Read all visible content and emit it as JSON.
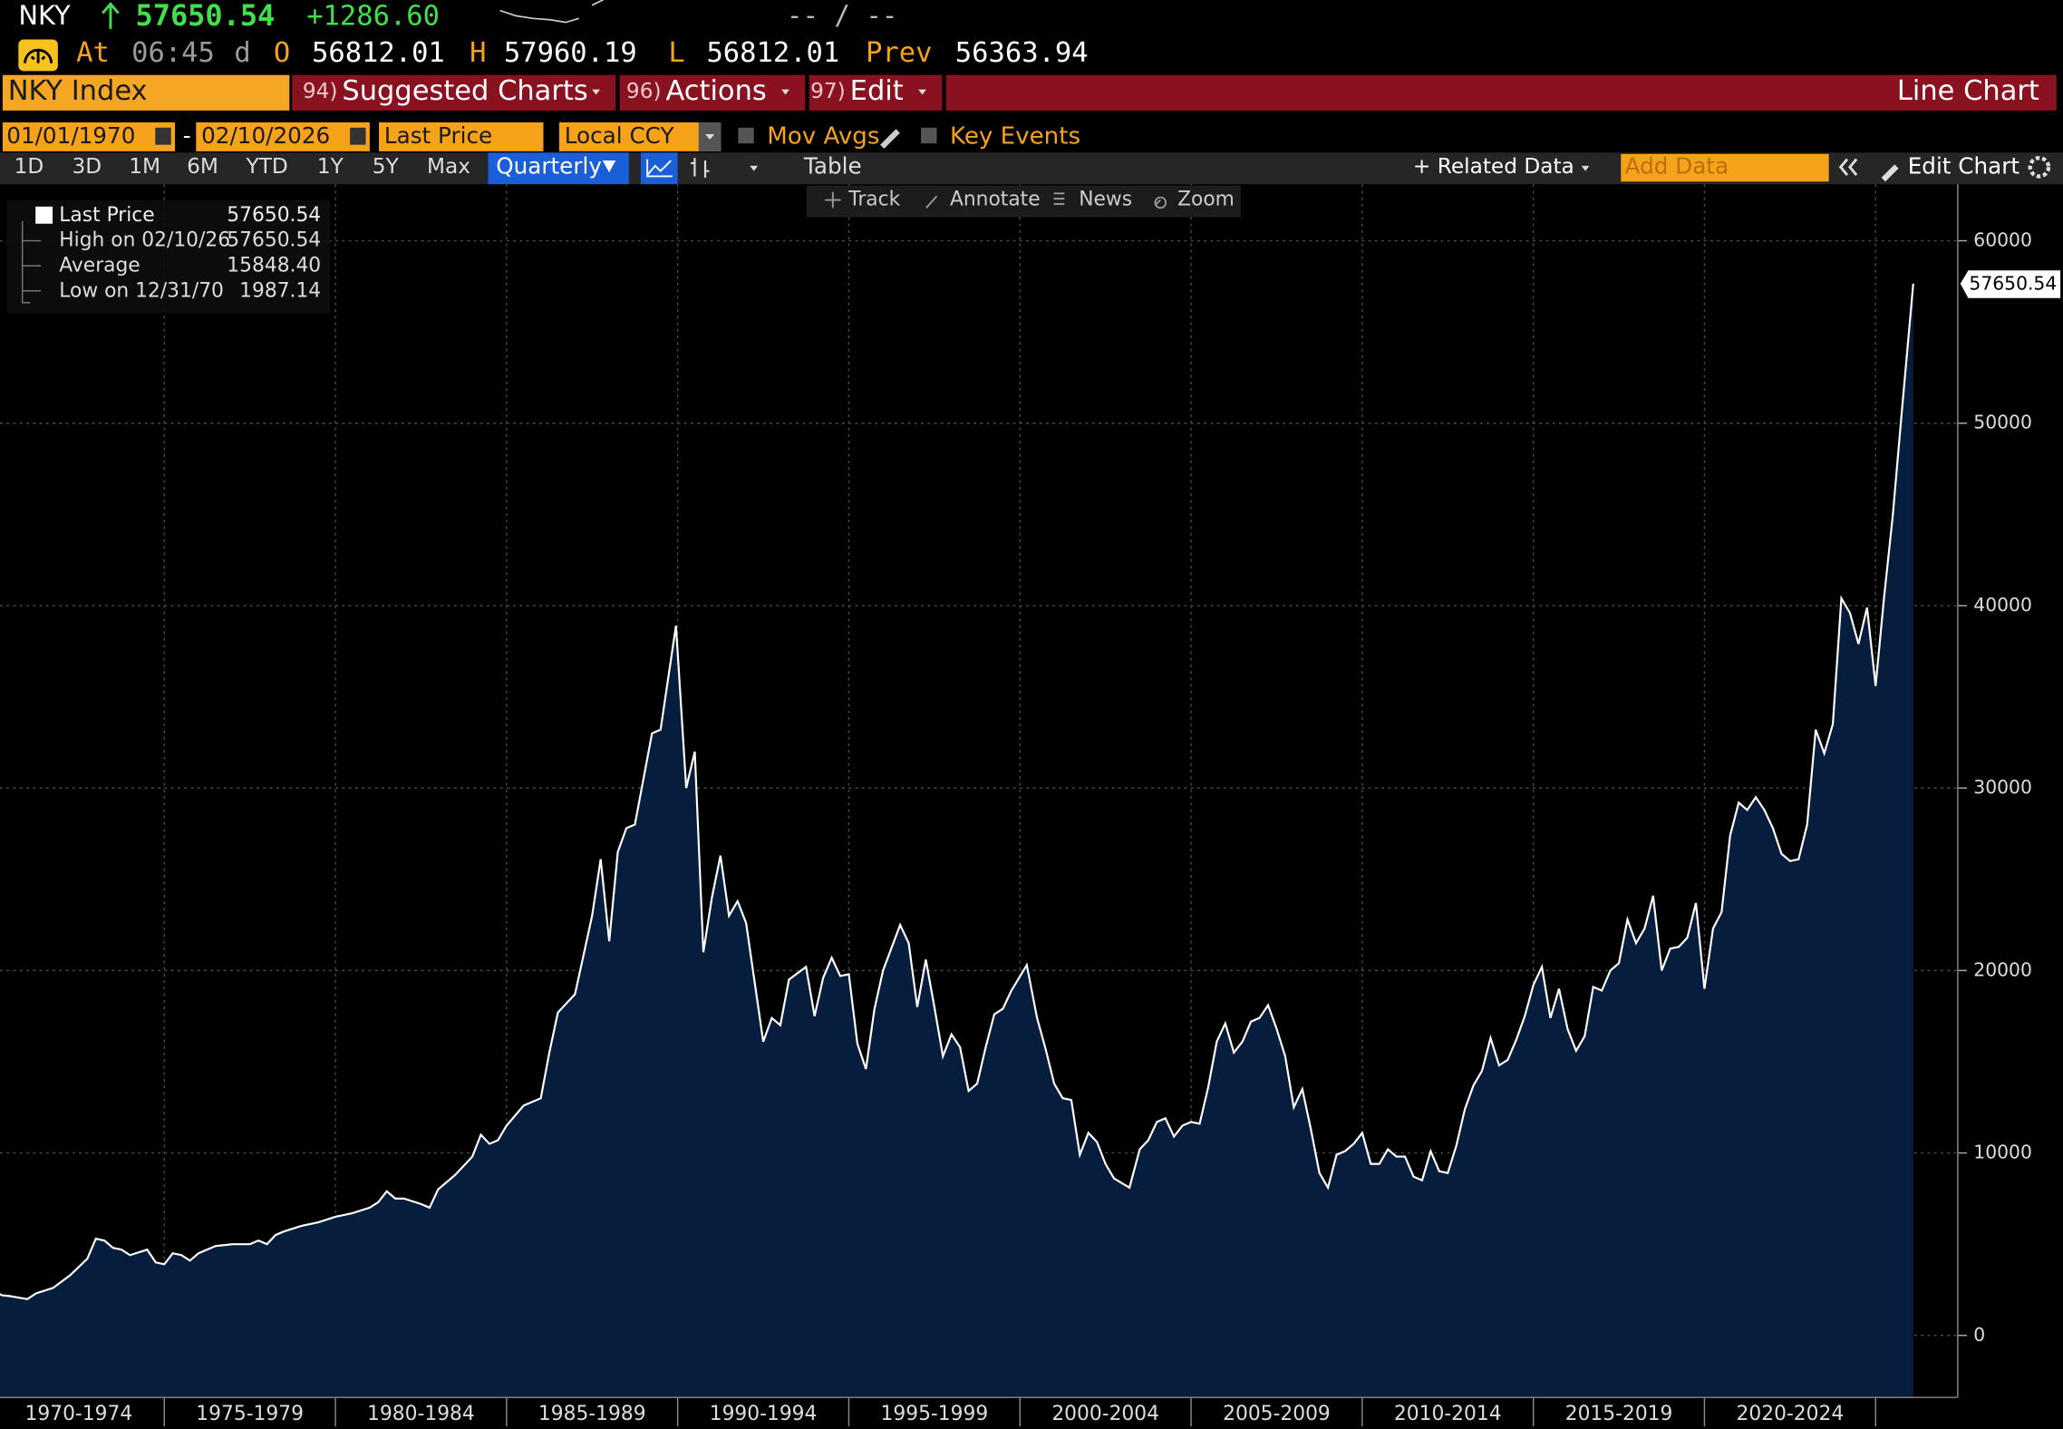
{
  "header": {
    "ticker": "NKY",
    "last": "57650.54",
    "change": "+1286.60",
    "bid_ask": "-- / --",
    "at_label": "At",
    "time": "06:45",
    "d": "d",
    "open_label": "O",
    "open": "56812.01",
    "high_label": "H",
    "high": "57960.19",
    "low_label": "L",
    "low": "56812.01",
    "prev_label": "Prev",
    "prev": "56363.94"
  },
  "menu": {
    "security": "NKY Index",
    "items": [
      {
        "num": "94)",
        "label": "Suggested Charts"
      },
      {
        "num": "96)",
        "label": "Actions"
      },
      {
        "num": "97)",
        "label": "Edit"
      }
    ],
    "view": "Line Chart"
  },
  "settings": {
    "start": "01/01/1970",
    "dash": "-",
    "end": "02/10/2026",
    "field": "Last Price",
    "currency": "Local CCY",
    "mov_avgs": "Mov Avgs",
    "key_events": "Key Events"
  },
  "toolbar": {
    "periods": [
      "1D",
      "3D",
      "1M",
      "6M",
      "YTD",
      "1Y",
      "5Y",
      "Max"
    ],
    "frequency": "Quarterly",
    "table": "Table",
    "related": "+ Related Data",
    "add_data": "Add Data",
    "edit_chart": "Edit Chart"
  },
  "chart_tools": [
    "Track",
    "Annotate",
    "News",
    "Zoom"
  ],
  "chart_data": {
    "type": "area",
    "x": [
      1970.0,
      1970.25,
      1970.5,
      1971.0,
      1971.25,
      1971.75,
      1972.25,
      1972.75,
      1973.0,
      1973.25,
      1973.5,
      1973.75,
      1974.0,
      1974.5,
      1974.75,
      1975.0,
      1975.25,
      1975.5,
      1975.75,
      1976.0,
      1976.5,
      1977.0,
      1977.5,
      1977.75,
      1978.0,
      1978.25,
      1978.5,
      1979.0,
      1979.5,
      1980.0,
      1980.5,
      1981.0,
      1981.25,
      1981.5,
      1981.75,
      1982.0,
      1982.5,
      1982.75,
      1983.0,
      1983.5,
      1984.0,
      1984.25,
      1984.5,
      1984.75,
      1985.0,
      1985.5,
      1986.0,
      1986.25,
      1986.5,
      1987.0,
      1987.5,
      1987.75,
      1988.0,
      1988.25,
      1988.5,
      1988.75,
      1989.0,
      1989.25,
      1989.5,
      1989.95,
      1990.25,
      1990.5,
      1990.75,
      1991.0,
      1991.25,
      1991.5,
      1991.75,
      1992.0,
      1992.5,
      1992.75,
      1993.0,
      1993.25,
      1993.75,
      1994.0,
      1994.25,
      1994.5,
      1994.75,
      1995.0,
      1995.25,
      1995.5,
      1995.75,
      1996.0,
      1996.5,
      1996.75,
      1997.0,
      1997.25,
      1997.5,
      1997.75,
      1998.0,
      1998.25,
      1998.5,
      1998.75,
      1999.0,
      1999.25,
      1999.5,
      1999.75,
      2000.2,
      2000.5,
      2000.75,
      2001.0,
      2001.25,
      2001.5,
      2001.75,
      2002.0,
      2002.25,
      2002.5,
      2002.75,
      2003.2,
      2003.5,
      2003.75,
      2004.0,
      2004.25,
      2004.5,
      2004.75,
      2005.0,
      2005.25,
      2005.5,
      2005.75,
      2006.0,
      2006.25,
      2006.5,
      2006.75,
      2007.0,
      2007.25,
      2007.5,
      2007.75,
      2008.0,
      2008.25,
      2008.5,
      2008.75,
      2009.0,
      2009.25,
      2009.5,
      2009.75,
      2010.0,
      2010.25,
      2010.5,
      2010.75,
      2011.0,
      2011.25,
      2011.5,
      2011.75,
      2012.0,
      2012.25,
      2012.5,
      2012.75,
      2013.0,
      2013.25,
      2013.5,
      2013.75,
      2014.0,
      2014.25,
      2014.5,
      2014.75,
      2015.0,
      2015.25,
      2015.5,
      2015.75,
      2016.0,
      2016.25,
      2016.5,
      2016.75,
      2017.0,
      2017.25,
      2017.5,
      2017.75,
      2018.0,
      2018.25,
      2018.5,
      2018.75,
      2019.0,
      2019.25,
      2019.5,
      2019.75,
      2020.0,
      2020.25,
      2020.5,
      2020.75,
      2021.0,
      2021.25,
      2021.5,
      2021.75,
      2022.0,
      2022.25,
      2022.5,
      2022.75,
      2023.0,
      2023.25,
      2023.5,
      2023.75,
      2024.0,
      2024.25,
      2024.5,
      2024.75,
      2025.0,
      2025.25,
      2025.5,
      2025.75,
      2026.1
    ],
    "series": [
      {
        "name": "Last Price",
        "color": "#ffffff",
        "fill": "#071d3d",
        "values": [
          2500,
          2200,
          2150,
          1987.14,
          2300,
          2600,
          3300,
          4200,
          5300,
          5200,
          4800,
          4700,
          4400,
          4700,
          4000,
          3900,
          4500,
          4400,
          4100,
          4500,
          4900,
          5000,
          5000,
          5200,
          5000,
          5500,
          5700,
          6000,
          6200,
          6500,
          6700,
          7000,
          7300,
          7900,
          7500,
          7500,
          7200,
          7000,
          8000,
          8800,
          9800,
          11000,
          10500,
          10700,
          11500,
          12600,
          13000,
          15500,
          17700,
          18700,
          23000,
          26100,
          21600,
          26500,
          27800,
          28000,
          30500,
          33000,
          33200,
          38900,
          30000,
          32000,
          21000,
          24000,
          26300,
          23000,
          23800,
          22600,
          16100,
          17400,
          17000,
          19500,
          20200,
          17500,
          19600,
          20700,
          19700,
          19800,
          16000,
          14600,
          17900,
          20000,
          22500,
          21500,
          18000,
          20600,
          18000,
          15300,
          16500,
          15800,
          13400,
          13800,
          15800,
          17600,
          17900,
          18900,
          20300,
          17400,
          15700,
          13800,
          13000,
          12900,
          9900,
          11100,
          10600,
          9400,
          8600,
          8100,
          10200,
          10700,
          11700,
          11900,
          10900,
          11500,
          11700,
          11600,
          13600,
          16100,
          17100,
          15500,
          16100,
          17200,
          17400,
          18100,
          16800,
          15300,
          12500,
          13500,
          11300,
          8900,
          8100,
          9900,
          10100,
          10500,
          11100,
          9400,
          9400,
          10200,
          9800,
          9800,
          8700,
          8500,
          10100,
          9000,
          8900,
          10400,
          12400,
          13700,
          14500,
          16300,
          14800,
          15100,
          16200,
          17500,
          19200,
          20200,
          17400,
          19000,
          16800,
          15600,
          16400,
          19100,
          18900,
          20000,
          20400,
          22800,
          21500,
          22300,
          24100,
          20000,
          21200,
          21300,
          21800,
          23700,
          19000,
          22300,
          23200,
          27400,
          29200,
          28800,
          29500,
          28800,
          27800,
          26400,
          26000,
          26100,
          28000,
          33200,
          31900,
          33500,
          40400,
          39600,
          37900,
          39900,
          35600,
          40500,
          44900,
          50300,
          57650.54
        ]
      }
    ],
    "legend": {
      "last": "57650.54",
      "stats": [
        {
          "label": "High on 02/10/26",
          "value": "57650.54"
        },
        {
          "label": "Average",
          "value": "15848.40"
        },
        {
          "label": "Low on 12/31/70",
          "value": "1987.14"
        }
      ]
    },
    "last_label": "57650.54",
    "xlim": [
      1970.2,
      2027.4
    ],
    "ylim": [
      -3400,
      63100
    ],
    "yticks": [
      0,
      10000,
      20000,
      30000,
      40000,
      50000,
      60000
    ],
    "xticks": [
      {
        "value": 1972.5,
        "label": "1970-1974"
      },
      {
        "value": 1977.5,
        "label": "1975-1979"
      },
      {
        "value": 1982.5,
        "label": "1980-1984"
      },
      {
        "value": 1987.5,
        "label": "1985-1989"
      },
      {
        "value": 1992.5,
        "label": "1990-1994"
      },
      {
        "value": 1997.5,
        "label": "1995-1999"
      },
      {
        "value": 2002.5,
        "label": "2000-2004"
      },
      {
        "value": 2007.5,
        "label": "2005-2009"
      },
      {
        "value": 2012.5,
        "label": "2010-2014"
      },
      {
        "value": 2017.5,
        "label": "2015-2019"
      },
      {
        "value": 2022.5,
        "label": "2020-2024"
      }
    ],
    "xgrid": [
      1975,
      1980,
      1985,
      1990,
      1995,
      2000,
      2005,
      2010,
      2015,
      2020,
      2025
    ],
    "grid": true
  }
}
